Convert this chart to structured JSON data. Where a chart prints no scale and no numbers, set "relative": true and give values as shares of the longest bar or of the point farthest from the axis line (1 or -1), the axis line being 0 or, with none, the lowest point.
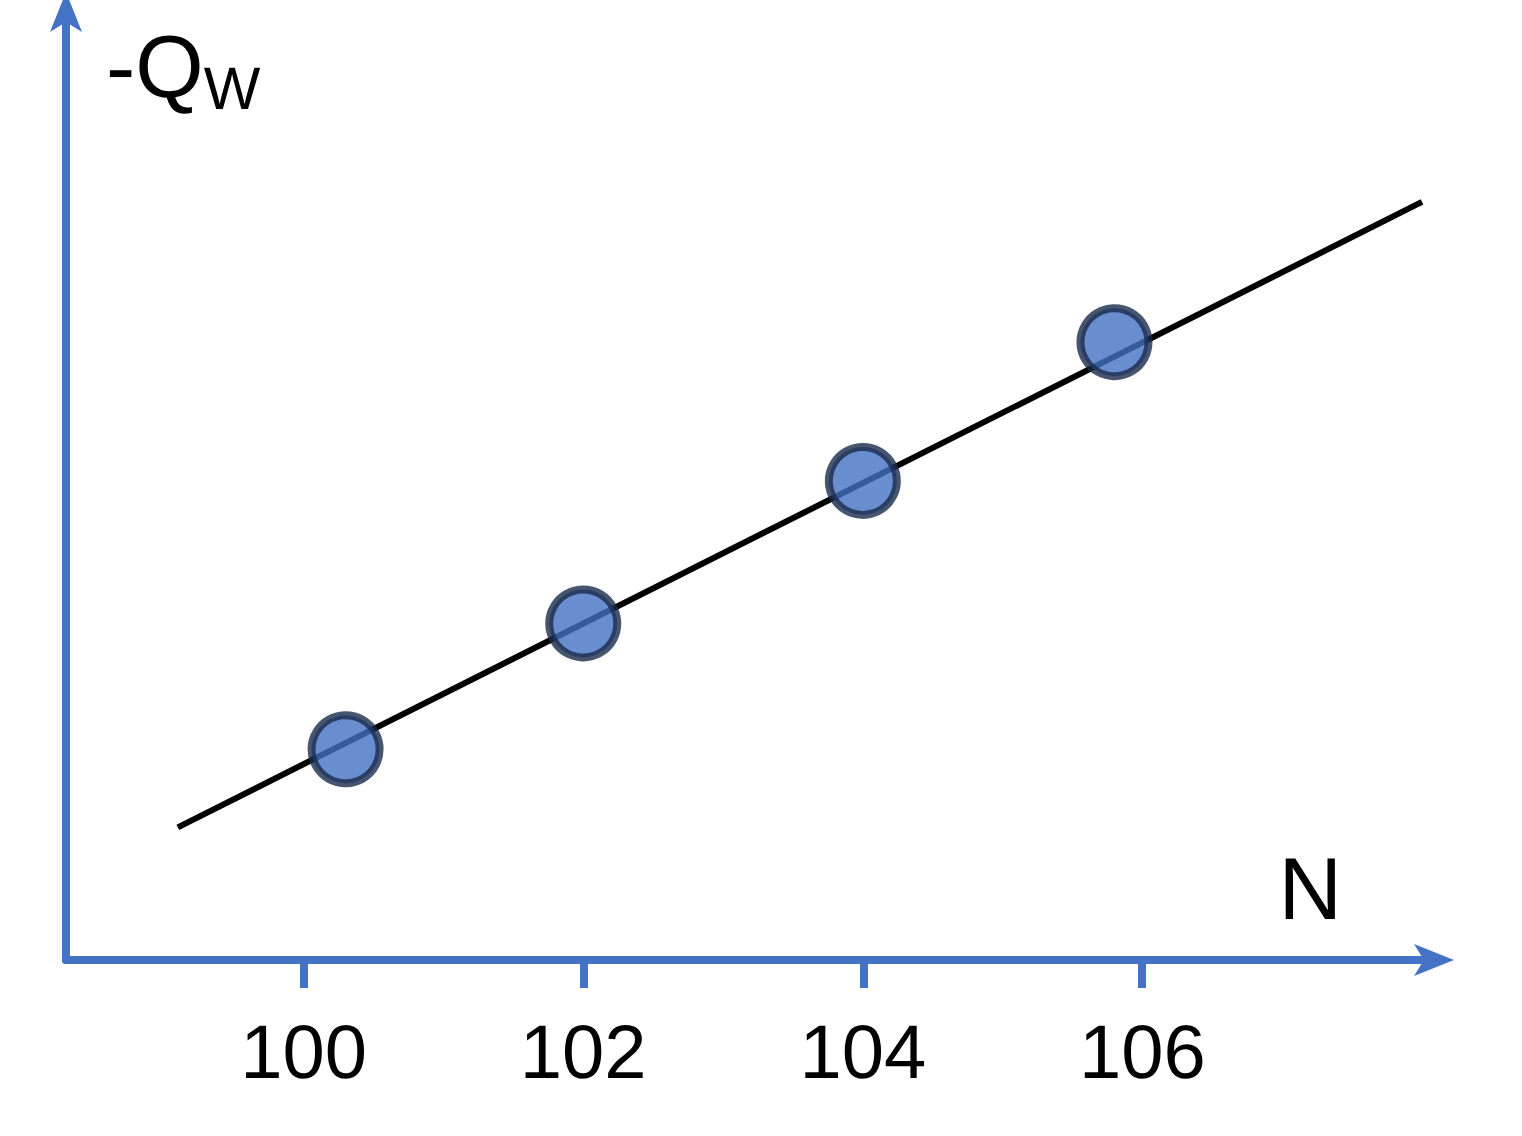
{
  "chart_data": {
    "type": "scatter",
    "relative": true,
    "xlabel": "N",
    "ylabel": "-Q$_{W}$",
    "series": [
      {
        "type": "scatter",
        "color": "#4472c4",
        "marker": "circle",
        "x": [
          100.3,
          102,
          104,
          105.8
        ],
        "values": [
          0.278,
          0.444,
          0.632,
          0.815
        ]
      },
      {
        "type": "line",
        "color": "#000000",
        "marker": "none",
        "line_style": "solid",
        "x": [
          99.1,
          108
        ],
        "values": [
          0.175,
          1.0
        ]
      }
    ],
    "xlim": [
      98.3,
      108
    ],
    "xticks": [
      100,
      102,
      104,
      106
    ],
    "grid": false
  }
}
